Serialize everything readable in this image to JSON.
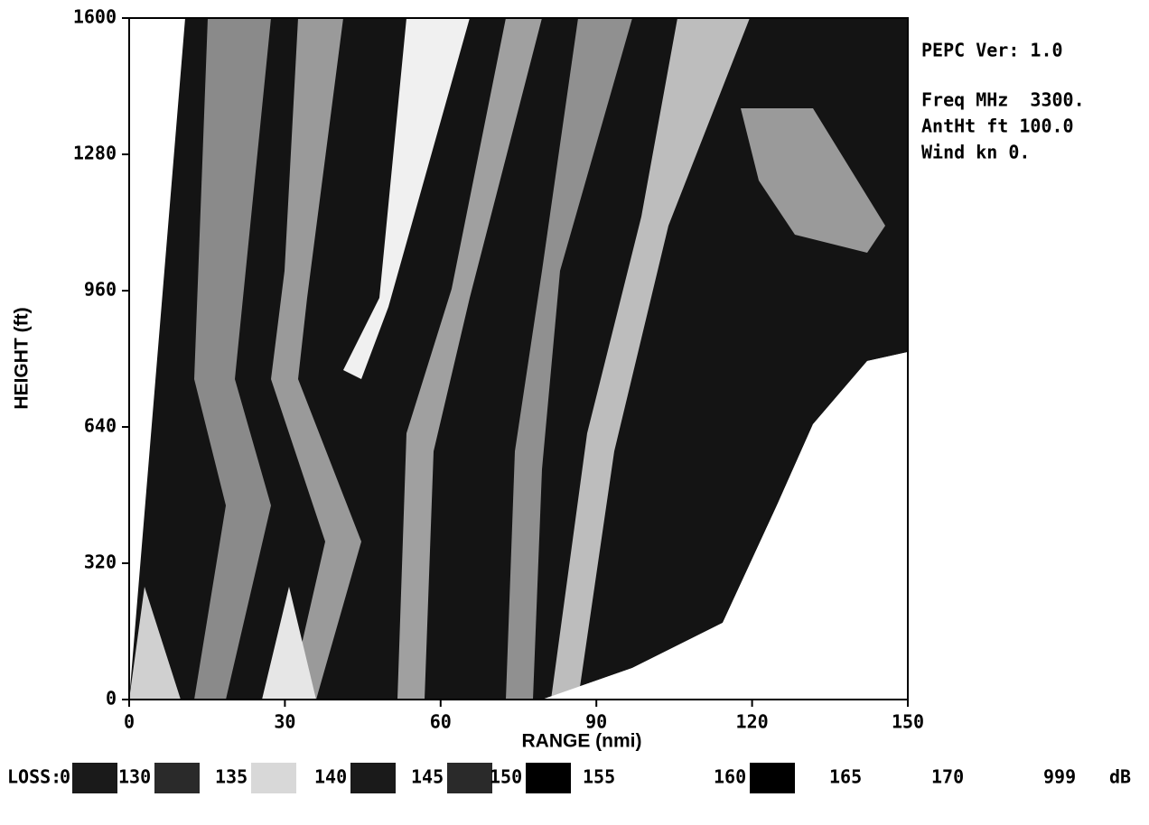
{
  "chart_data": {
    "type": "coverage",
    "xlabel": "RANGE (nmi)",
    "ylabel": "HEIGHT (ft)",
    "xlim": [
      0,
      150
    ],
    "xticks": [
      0,
      30,
      60,
      90,
      120,
      150
    ],
    "ylim": [
      0,
      1600
    ],
    "yticks": [
      0,
      320,
      640,
      960,
      1280,
      1600
    ],
    "info": [
      "PEPC Ver: 1.0",
      "Freq MHz  3300.",
      "AntHt ft 100.0",
      "Wind kn 0."
    ],
    "legend": {
      "title": "LOSS:",
      "unit": "dB",
      "levels": [
        0,
        130,
        135,
        140,
        145,
        150,
        155,
        160,
        165,
        170,
        999
      ],
      "colors": [
        "#1a1a1a",
        "#2a2a2a",
        "#d8d8d8",
        "#1a1a1a",
        "#2a2a2a",
        "#000000",
        "#ffffff",
        "#000000",
        "#ffffff",
        "#ffffff"
      ]
    }
  }
}
